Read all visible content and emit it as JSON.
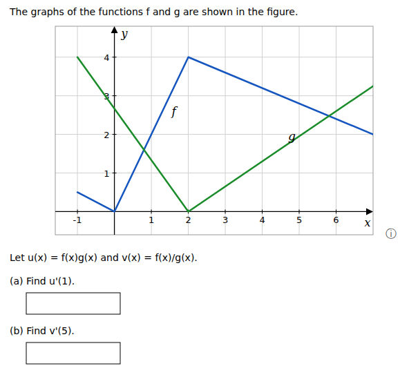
{
  "chart_data": {
    "type": "line",
    "title": "The graphs of the functions f and g are shown in the figure.",
    "xlabel": "x",
    "ylabel": "y",
    "series": [
      {
        "name": "f",
        "color": "#1555c0",
        "x": [
          -1,
          0,
          2,
          7
        ],
        "values": [
          0.5,
          0,
          4,
          2
        ]
      },
      {
        "name": "g",
        "color": "#1a8c2a",
        "x": [
          -1,
          2,
          7
        ],
        "values": [
          4,
          0,
          3.25
        ]
      }
    ],
    "annotations": [
      {
        "text": "f",
        "x": 1.55,
        "y": 2.5
      },
      {
        "text": "g",
        "x": 4.7,
        "y": 1.85
      }
    ],
    "xlim": [
      -1.6,
      7.0
    ],
    "ylim": [
      -0.6,
      4.8
    ],
    "xticks": [
      -1,
      1,
      2,
      3,
      4,
      5,
      6
    ],
    "yticks": [
      1,
      2,
      3,
      4
    ],
    "grid": true,
    "notes": [
      "Let u(x) = f(x)g(x) and v(x) = f(x)/g(x).",
      "(a)   Find u'(1).",
      "(b)   Find v'(5)."
    ],
    "info_icon": "ⓘ"
  }
}
